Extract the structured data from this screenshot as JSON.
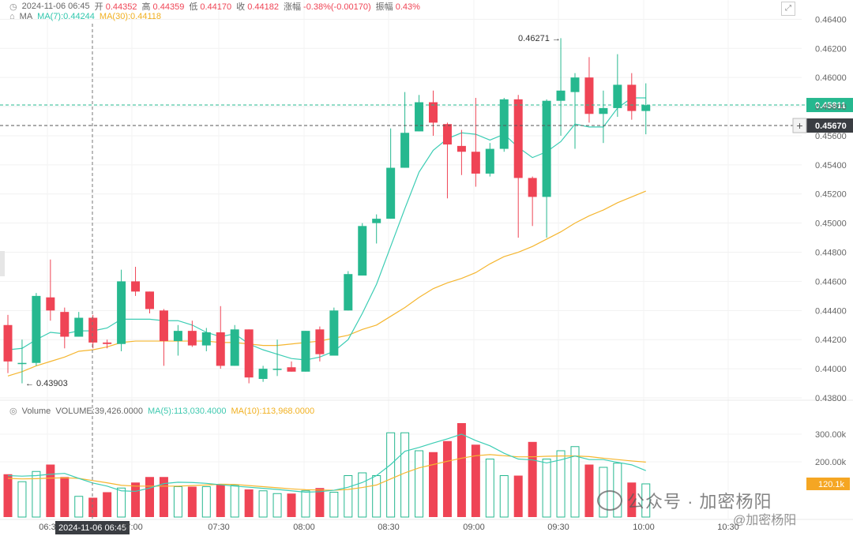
{
  "header": {
    "datetime": "2024-11-06 06:45",
    "open_label": "开",
    "open": "0.44352",
    "high_label": "高",
    "high": "0.44359",
    "low_label": "低",
    "low": "0.44170",
    "close_label": "收",
    "close": "0.44182",
    "change_label": "涨幅",
    "change": "-0.38%(-0.00170)",
    "amplitude_label": "振幅",
    "amplitude": "0.43%"
  },
  "ma_line": {
    "label": "MA",
    "ma7": "MA(7):0.44244",
    "ma30": "MA(30):0.44118"
  },
  "volume_line": {
    "label": "Volume",
    "volume": "VOLUME:39,426.0000",
    "ma5": "MA(5):113,030.4000",
    "ma10": "MA(10):113,968.0000"
  },
  "watermark": {
    "text": "公众号 · 加密杨阳",
    "text2": "@加密杨阳"
  },
  "colors": {
    "up": "#26b88f",
    "down": "#ef4455",
    "ma7": "#3ccdb4",
    "ma30": "#f5b630",
    "accent_badge": "#26b88f",
    "vol_badge": "#f5a623"
  },
  "chart_data": [
    {
      "type": "candlestick",
      "ylim": [
        0.438,
        0.465
      ],
      "y_ticks": [
        "0.43800",
        "0.44000",
        "0.44200",
        "0.44400",
        "0.44600",
        "0.44800",
        "0.45000",
        "0.45200",
        "0.45400",
        "0.45600",
        "0.45800",
        "0.46000",
        "0.46200",
        "0.46400"
      ],
      "x_ticks": [
        "06:3",
        "07:00",
        "07:30",
        "08:00",
        "08:30",
        "09:00",
        "09:30",
        "10:00",
        "10:30"
      ],
      "crosshair_time_label": "2024-11-06 06:45",
      "price_badges": [
        "0.45811",
        "0.45670"
      ],
      "annotations": {
        "high": "0.46271",
        "low": "0.43903"
      },
      "candles": [
        {
          "o": 0.443,
          "h": 0.4437,
          "l": 0.4397,
          "c": 0.4405
        },
        {
          "o": 0.4404,
          "h": 0.442,
          "l": 0.439,
          "c": 0.4404
        },
        {
          "o": 0.4404,
          "h": 0.4452,
          "l": 0.4402,
          "c": 0.445
        },
        {
          "o": 0.4449,
          "h": 0.4475,
          "l": 0.4433,
          "c": 0.444
        },
        {
          "o": 0.4439,
          "h": 0.4442,
          "l": 0.4414,
          "c": 0.4422
        },
        {
          "o": 0.4422,
          "h": 0.4439,
          "l": 0.4422,
          "c": 0.4435
        },
        {
          "o": 0.4435,
          "h": 0.4437,
          "l": 0.4414,
          "c": 0.4418
        },
        {
          "o": 0.4418,
          "h": 0.442,
          "l": 0.4414,
          "c": 0.4417
        },
        {
          "o": 0.4417,
          "h": 0.4468,
          "l": 0.4412,
          "c": 0.446
        },
        {
          "o": 0.446,
          "h": 0.447,
          "l": 0.445,
          "c": 0.4453
        },
        {
          "o": 0.4453,
          "h": 0.4453,
          "l": 0.4438,
          "c": 0.4441
        },
        {
          "o": 0.444,
          "h": 0.4441,
          "l": 0.4402,
          "c": 0.4419
        },
        {
          "o": 0.4419,
          "h": 0.443,
          "l": 0.4409,
          "c": 0.4426
        },
        {
          "o": 0.4426,
          "h": 0.4433,
          "l": 0.4415,
          "c": 0.4416
        },
        {
          "o": 0.4416,
          "h": 0.4428,
          "l": 0.4412,
          "c": 0.4425
        },
        {
          "o": 0.4425,
          "h": 0.4443,
          "l": 0.44,
          "c": 0.4402
        },
        {
          "o": 0.4402,
          "h": 0.443,
          "l": 0.4402,
          "c": 0.4427
        },
        {
          "o": 0.4427,
          "h": 0.4427,
          "l": 0.439,
          "c": 0.4394
        },
        {
          "o": 0.4393,
          "h": 0.4402,
          "l": 0.4391,
          "c": 0.44
        },
        {
          "o": 0.44,
          "h": 0.442,
          "l": 0.4395,
          "c": 0.44
        },
        {
          "o": 0.4401,
          "h": 0.4405,
          "l": 0.4398,
          "c": 0.4398
        },
        {
          "o": 0.4398,
          "h": 0.4426,
          "l": 0.4398,
          "c": 0.4426
        },
        {
          "o": 0.4427,
          "h": 0.4429,
          "l": 0.4405,
          "c": 0.441
        },
        {
          "o": 0.4409,
          "h": 0.4442,
          "l": 0.4409,
          "c": 0.444
        },
        {
          "o": 0.444,
          "h": 0.4467,
          "l": 0.444,
          "c": 0.4465
        },
        {
          "o": 0.4464,
          "h": 0.45,
          "l": 0.4464,
          "c": 0.4498
        },
        {
          "o": 0.45,
          "h": 0.4506,
          "l": 0.4486,
          "c": 0.4503
        },
        {
          "o": 0.4503,
          "h": 0.4565,
          "l": 0.4503,
          "c": 0.4538
        },
        {
          "o": 0.4538,
          "h": 0.459,
          "l": 0.4538,
          "c": 0.4562
        },
        {
          "o": 0.4563,
          "h": 0.4588,
          "l": 0.4563,
          "c": 0.4583
        },
        {
          "o": 0.4583,
          "h": 0.4591,
          "l": 0.456,
          "c": 0.4569
        },
        {
          "o": 0.4568,
          "h": 0.4569,
          "l": 0.4517,
          "c": 0.4554
        },
        {
          "o": 0.4553,
          "h": 0.4564,
          "l": 0.4533,
          "c": 0.4549
        },
        {
          "o": 0.4549,
          "h": 0.4586,
          "l": 0.4525,
          "c": 0.4534
        },
        {
          "o": 0.4534,
          "h": 0.4555,
          "l": 0.4532,
          "c": 0.4551
        },
        {
          "o": 0.4551,
          "h": 0.4586,
          "l": 0.4549,
          "c": 0.4585
        },
        {
          "o": 0.4585,
          "h": 0.4588,
          "l": 0.449,
          "c": 0.4531
        },
        {
          "o": 0.4531,
          "h": 0.4532,
          "l": 0.4498,
          "c": 0.4518
        },
        {
          "o": 0.4518,
          "h": 0.4585,
          "l": 0.449,
          "c": 0.4584
        },
        {
          "o": 0.4584,
          "h": 0.4627,
          "l": 0.456,
          "c": 0.4591
        },
        {
          "o": 0.459,
          "h": 0.4603,
          "l": 0.4551,
          "c": 0.46
        },
        {
          "o": 0.46,
          "h": 0.4614,
          "l": 0.4569,
          "c": 0.4575
        },
        {
          "o": 0.4575,
          "h": 0.4591,
          "l": 0.4555,
          "c": 0.4579
        },
        {
          "o": 0.4579,
          "h": 0.4616,
          "l": 0.4573,
          "c": 0.4595
        },
        {
          "o": 0.4595,
          "h": 0.4603,
          "l": 0.4571,
          "c": 0.4577
        },
        {
          "o": 0.4577,
          "h": 0.4596,
          "l": 0.4561,
          "c": 0.4581
        }
      ],
      "ma7": [
        0.4413,
        0.4414,
        0.442,
        0.4425,
        0.4424,
        0.4426,
        0.4426,
        0.4428,
        0.4434,
        0.4434,
        0.4434,
        0.4433,
        0.4433,
        0.443,
        0.4425,
        0.4422,
        0.4424,
        0.4417,
        0.4413,
        0.441,
        0.4407,
        0.4406,
        0.4408,
        0.4412,
        0.442,
        0.4438,
        0.4458,
        0.4484,
        0.451,
        0.4535,
        0.455,
        0.4558,
        0.4562,
        0.4561,
        0.4557,
        0.4561,
        0.4552,
        0.4545,
        0.4549,
        0.4556,
        0.4568,
        0.4566,
        0.4566,
        0.4579,
        0.4586,
        0.4586
      ],
      "ma30": [
        0.4395,
        0.4398,
        0.4402,
        0.4405,
        0.4408,
        0.4412,
        0.4413,
        0.4415,
        0.4418,
        0.4419,
        0.4419,
        0.4419,
        0.4419,
        0.4419,
        0.4419,
        0.4418,
        0.4418,
        0.4417,
        0.4416,
        0.4416,
        0.4417,
        0.4418,
        0.4419,
        0.4421,
        0.4423,
        0.4427,
        0.443,
        0.4436,
        0.4442,
        0.4449,
        0.4455,
        0.4459,
        0.4462,
        0.4466,
        0.4472,
        0.4477,
        0.448,
        0.4484,
        0.4489,
        0.4494,
        0.45,
        0.4505,
        0.4509,
        0.4514,
        0.4518,
        0.4522
      ]
    },
    {
      "type": "bar",
      "name": "Volume",
      "ylim": [
        0,
        360000
      ],
      "y_ticks": [
        "300.00k",
        "200.00k"
      ],
      "current_badge": "120.1k",
      "values": [
        155000,
        128000,
        165000,
        190000,
        145000,
        75000,
        70000,
        90000,
        105000,
        125000,
        145000,
        145000,
        110000,
        110000,
        110000,
        120000,
        115000,
        100000,
        95000,
        85000,
        85000,
        95000,
        105000,
        90000,
        150000,
        160000,
        150000,
        305000,
        305000,
        240000,
        235000,
        275000,
        340000,
        262000,
        210000,
        150000,
        150000,
        272000,
        210000,
        240000,
        255000,
        190000,
        180000,
        195000,
        125000,
        120100
      ],
      "ma5": [
        150000,
        148000,
        150000,
        155000,
        158000,
        140000,
        123000,
        112000,
        95000,
        93000,
        105000,
        121000,
        126000,
        125000,
        122000,
        117000,
        112000,
        108000,
        104000,
        100000,
        95000,
        90000,
        92000,
        97000,
        108000,
        125000,
        150000,
        190000,
        238000,
        252000,
        268000,
        283000,
        300000,
        277000,
        258000,
        231000,
        210000,
        207000,
        196000,
        207000,
        221000,
        208000,
        208000,
        198000,
        189000,
        168000
      ],
      "ma10": [
        140000,
        138000,
        139000,
        141000,
        142000,
        140000,
        132000,
        124000,
        115000,
        112000,
        112000,
        112000,
        112000,
        114000,
        116000,
        119000,
        118000,
        114000,
        110000,
        106000,
        102000,
        99000,
        98000,
        97000,
        100000,
        107000,
        116000,
        138000,
        160000,
        178000,
        190000,
        202000,
        213000,
        222000,
        226000,
        222000,
        218000,
        218000,
        220000,
        221000,
        221000,
        219000,
        213000,
        208000,
        203000,
        199000
      ]
    }
  ]
}
